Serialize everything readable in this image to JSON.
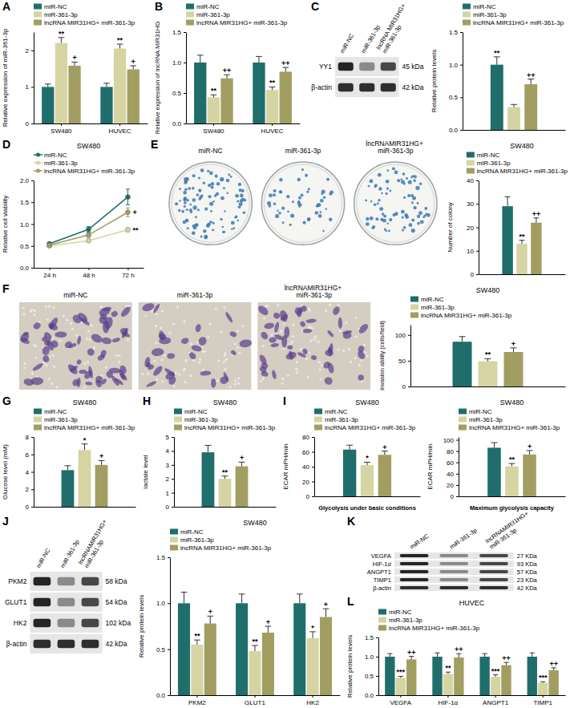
{
  "chart_data": [
    {
      "panel": "A",
      "type": "bar",
      "y_label": "Relative expression of miR-361-3p",
      "categories": [
        "SW480",
        "HUVEC"
      ],
      "series": [
        {
          "name": "miR-NC",
          "color": "#1f6e6b",
          "values": [
            1.0,
            1.0
          ],
          "errors": [
            0.08,
            0.1
          ]
        },
        {
          "name": "miR-361-3p",
          "color": "#d6d4a3",
          "values": [
            2.2,
            2.05
          ],
          "errors": [
            0.15,
            0.12
          ],
          "annotations": [
            "**",
            "**"
          ]
        },
        {
          "name": "lncRNA MIR31HG+ miR-361-3p",
          "color": "#a29e62",
          "values": [
            1.58,
            1.48
          ],
          "errors": [
            0.1,
            0.1
          ],
          "annotations": [
            "+",
            "+"
          ]
        }
      ],
      "ylim": [
        0,
        2.5
      ],
      "yticks": [
        0,
        1,
        2
      ]
    },
    {
      "panel": "B",
      "type": "bar",
      "y_label": "Relative expression of lncRNA MIR31HG",
      "categories": [
        "SW480",
        "HUVEC"
      ],
      "series": [
        {
          "name": "miR-NC",
          "color": "#1f6e6b",
          "values": [
            1.0,
            1.0
          ],
          "errors": [
            0.12,
            0.1
          ]
        },
        {
          "name": "miR-361-3p",
          "color": "#d6d4a3",
          "values": [
            0.43,
            0.55
          ],
          "errors": [
            0.04,
            0.05
          ],
          "annotations": [
            "**",
            "**"
          ]
        },
        {
          "name": "lncRNA MIR31HG+ miR-361-3p",
          "color": "#a29e62",
          "values": [
            0.74,
            0.85
          ],
          "errors": [
            0.06,
            0.07
          ],
          "annotations": [
            "++",
            "++"
          ]
        }
      ],
      "ylim": [
        0,
        1.5
      ],
      "yticks": [
        {
          "value": 0,
          "label": "0.0"
        },
        0.5,
        {
          "value": 1,
          "label": "1.0"
        },
        1.5
      ]
    },
    {
      "panel": "C",
      "type": "blot",
      "lanes": [
        "miR-NC",
        "miR-361-3p",
        "lncRNA MIR31HG+ miR-361-3p"
      ],
      "bands": [
        {
          "name": "YY1",
          "size": "45 kDa"
        },
        {
          "name": "β-actin",
          "size": "42 kDa"
        }
      ]
    },
    {
      "type": "bar",
      "y_label": "Relative protein levels",
      "categories": [
        null
      ],
      "series": [
        {
          "name": "miR-NC",
          "color": "#1f6e6b",
          "values": [
            1.0
          ],
          "errors": [
            0.12
          ],
          "annotations": [
            "**"
          ]
        },
        {
          "name": "miR-361-3p",
          "color": "#d6d4a3",
          "values": [
            0.35
          ],
          "errors": [
            0.04
          ]
        },
        {
          "name": "lncRNA MIR31HG+ miR-361-3p",
          "color": "#a29e62",
          "values": [
            0.7
          ],
          "errors": [
            0.08
          ],
          "annotations": [
            "++"
          ]
        }
      ],
      "ylim": [
        0,
        1.5
      ],
      "yticks": [
        {
          "value": 0,
          "label": "0.0"
        },
        0.5,
        {
          "value": 1,
          "label": "1.0"
        },
        1.5
      ]
    },
    {
      "panel": "D",
      "type": "line",
      "title": "SW480",
      "y_label": "Relative cell viability",
      "marker": "circle",
      "categories": [
        "24 h",
        "48 h",
        "72 h"
      ],
      "series": [
        {
          "name": "miR-NC",
          "color": "#1f6e6b",
          "values": [
            0.55,
            0.88,
            1.62
          ],
          "errors": [
            0.03,
            0.06,
            0.18
          ]
        },
        {
          "name": "miR-361-3p",
          "color": "#d6d4a3",
          "values": [
            0.5,
            0.62,
            0.87
          ],
          "errors": [
            0.03,
            0.04,
            0.05
          ],
          "annotations": [
            null,
            null,
            "**"
          ]
        },
        {
          "name": "lncRNA MIR31HG+ miR-361-3p",
          "color": "#a29e62",
          "values": [
            0.52,
            0.75,
            1.27
          ],
          "errors": [
            0.03,
            0.05,
            0.1
          ],
          "annotations": [
            null,
            null,
            "+"
          ]
        }
      ],
      "ylim": [
        0,
        2
      ],
      "yticks": [
        {
          "value": 0,
          "label": "0.0"
        },
        0.5,
        {
          "value": 1,
          "label": "1.0"
        },
        1.5,
        {
          "value": 2,
          "label": "2.0"
        }
      ]
    },
    {
      "panel": "E",
      "type": "plates",
      "labels": [
        "miR-NC",
        "miR-361-3p",
        "lncRNAMIR31HG+ miR-361-3p"
      ]
    },
    {
      "type": "bar",
      "title": "SW480",
      "y_label": "Number of colony",
      "categories": [
        null
      ],
      "series": [
        {
          "name": "miR-NC",
          "color": "#1f6e6b",
          "values": [
            29
          ],
          "errors": [
            4
          ]
        },
        {
          "name": "miR-361-3p",
          "color": "#d6d4a3",
          "values": [
            13
          ],
          "errors": [
            1.5
          ],
          "annotations": [
            "**"
          ]
        },
        {
          "name": "lncRNA MIR31HG+ miR-361-3p",
          "color": "#a29e62",
          "values": [
            22
          ],
          "errors": [
            2
          ],
          "annotations": [
            "++"
          ]
        }
      ],
      "ylim": [
        0,
        40
      ],
      "yticks": [
        0,
        10,
        20,
        30,
        40
      ]
    },
    {
      "panel": "F",
      "type": "micrographs",
      "labels": [
        "miR-NC",
        "miR-361-3p",
        "lncRNAMIR31HG+ miR-361-3p"
      ]
    },
    {
      "type": "bar",
      "title": "SW480",
      "y_label": "Invasion ability (cells/field)",
      "categories": [
        null
      ],
      "series": [
        {
          "name": "miR-NC",
          "color": "#1f6e6b",
          "values": [
            87
          ],
          "errors": [
            10
          ]
        },
        {
          "name": "miR-361-3p",
          "color": "#d6d4a3",
          "values": [
            49
          ],
          "errors": [
            5
          ],
          "annotations": [
            "**"
          ]
        },
        {
          "name": "lncRNA MIR31HG+ miR-361-3p",
          "color": "#a29e62",
          "values": [
            67
          ],
          "errors": [
            8
          ],
          "annotations": [
            "+"
          ]
        }
      ],
      "ylim": [
        0,
        120
      ],
      "yticks": [
        0,
        50,
        100
      ]
    },
    {
      "panel": "G",
      "type": "bar",
      "title": "SW480",
      "y_label": "Glucose level (mM)",
      "categories": [
        null
      ],
      "series": [
        {
          "name": "miR-NC",
          "color": "#1f6e6b",
          "values": [
            4.2
          ],
          "errors": [
            0.5
          ]
        },
        {
          "name": "miR-361-3p",
          "color": "#d6d4a3",
          "values": [
            6.5
          ],
          "errors": [
            0.7
          ],
          "annotations": [
            "*"
          ]
        },
        {
          "name": "lncRNA MIR31HG+ miR-361-3p",
          "color": "#a29e62",
          "values": [
            4.8
          ],
          "errors": [
            0.5
          ],
          "annotations": [
            "+"
          ]
        }
      ],
      "ylim": [
        0,
        8
      ],
      "yticks": [
        0,
        2,
        4,
        6,
        8
      ]
    },
    {
      "panel": "H",
      "type": "bar",
      "title": "SW480",
      "y_label": "lactate level",
      "categories": [
        null
      ],
      "series": [
        {
          "name": "miR-NC",
          "color": "#1f6e6b",
          "values": [
            3.9
          ],
          "errors": [
            0.5
          ]
        },
        {
          "name": "miR-361-3p",
          "color": "#d6d4a3",
          "values": [
            2.0
          ],
          "errors": [
            0.2
          ],
          "annotations": [
            "**"
          ]
        },
        {
          "name": "lncRNA MIR31HG+ miR-361-3p",
          "color": "#a29e62",
          "values": [
            2.9
          ],
          "errors": [
            0.3
          ],
          "annotations": [
            "+"
          ]
        }
      ],
      "ylim": [
        0,
        5
      ],
      "yticks": [
        0,
        1,
        2,
        3,
        4,
        5
      ]
    },
    {
      "panel": "I",
      "type": "bar",
      "title": "SW480",
      "y_label": "ECAR mPH/min",
      "x_label": "Glycolysis under basic conditions",
      "categories": [
        null
      ],
      "series": [
        {
          "name": "miR-NC",
          "color": "#1f6e6b",
          "values": [
            63
          ],
          "errors": [
            6
          ]
        },
        {
          "name": "miR-361-3p",
          "color": "#d6d4a3",
          "values": [
            42
          ],
          "errors": [
            4
          ],
          "annotations": [
            "*"
          ]
        },
        {
          "name": "lncRNA MIR31HG+ miR-361-3p",
          "color": "#a29e62",
          "values": [
            56
          ],
          "errors": [
            5
          ],
          "annotations": [
            "+"
          ]
        }
      ],
      "ylim": [
        0,
        80
      ],
      "yticks": [
        0,
        20,
        40,
        60,
        80
      ]
    },
    {
      "type": "bar",
      "title": "SW480",
      "y_label": "ECAR mPH/min",
      "x_label": "Maximum glycolysis capacity",
      "categories": [
        null
      ],
      "series": [
        {
          "name": "miR-NC",
          "color": "#1f6e6b",
          "values": [
            86
          ],
          "errors": [
            9
          ]
        },
        {
          "name": "miR-361-3p",
          "color": "#d6d4a3",
          "values": [
            53
          ],
          "errors": [
            5
          ],
          "annotations": [
            "**"
          ]
        },
        {
          "name": "lncRNA MIR31HG+ miR-361-3p",
          "color": "#a29e62",
          "values": [
            74
          ],
          "errors": [
            7
          ],
          "annotations": [
            "+"
          ]
        }
      ],
      "ylim": [
        0,
        105
      ],
      "yticks": [
        0,
        20,
        40,
        60,
        80,
        100
      ]
    },
    {
      "panel": "J",
      "type": "blot",
      "lanes": [
        "miR-NC",
        "miR-361-3p",
        "lncRNAMIR31HG+ miR-361-3p"
      ],
      "bands": [
        {
          "name": "PKM2",
          "size": "58 kDa"
        },
        {
          "name": "GLUT1",
          "size": "54 kDa"
        },
        {
          "name": "HK2",
          "size": "102 kDa"
        },
        {
          "name": "β-actin",
          "size": "42 kDa"
        }
      ]
    },
    {
      "type": "bar",
      "title": "SW480",
      "y_label": "Relative protein levels",
      "categories": [
        "PKM2",
        "GLUT1",
        "HK2"
      ],
      "series": [
        {
          "name": "miR-NC",
          "color": "#1f6e6b",
          "values": [
            1.0,
            1.0,
            1.0
          ],
          "errors": [
            0.12,
            0.1,
            0.1
          ]
        },
        {
          "name": "miR-361-3p",
          "color": "#d6d4a3",
          "values": [
            0.55,
            0.48,
            0.62
          ],
          "errors": [
            0.05,
            0.06,
            0.07
          ],
          "annotations": [
            "**",
            "**",
            "*"
          ]
        },
        {
          "name": "lncRNA MIR31HG+ miR-361-3p",
          "color": "#a29e62",
          "values": [
            0.78,
            0.68,
            0.85
          ],
          "errors": [
            0.08,
            0.07,
            0.09
          ],
          "annotations": [
            "+",
            "+",
            "+"
          ]
        }
      ],
      "ylim": [
        0,
        1.5
      ],
      "yticks": [
        {
          "value": 0,
          "label": "0.0"
        },
        0.5,
        {
          "value": 1,
          "label": "1.0"
        },
        1.5
      ]
    },
    {
      "panel": "K",
      "type": "blot",
      "lanes": [
        "miR-NC",
        "miR-361-3p",
        "lncRNAMIR31HG+ miR-361-3p"
      ],
      "bands": [
        {
          "name": "VEGFA",
          "size": "27 KDa"
        },
        {
          "name": "HIF-1α",
          "size": "93 KDa"
        },
        {
          "name": "ANGPT1",
          "size": "57 KDa"
        },
        {
          "name": "TIMP1",
          "size": "23 KDa"
        },
        {
          "name": "β-actin",
          "size": "42 KDa"
        }
      ]
    },
    {
      "panel": "L",
      "type": "bar",
      "title": "HUVEC",
      "y_label": "Relative protein levels",
      "categories": [
        "VEGFA",
        "HIF-1α",
        "ANGPT1",
        "TIMP1"
      ],
      "series": [
        {
          "name": "miR-NC",
          "color": "#1f6e6b",
          "values": [
            1.0,
            1.0,
            1.0,
            1.0
          ],
          "errors": [
            0.08,
            0.1,
            0.08,
            0.1
          ]
        },
        {
          "name": "miR-361-3p",
          "color": "#d6d4a3",
          "values": [
            0.45,
            0.55,
            0.48,
            0.32
          ],
          "errors": [
            0.04,
            0.05,
            0.05,
            0.03
          ],
          "annotations": [
            "***",
            "**",
            "***",
            "***"
          ]
        },
        {
          "name": "lncRNA MIR31HG+ miR-361-3p",
          "color": "#a29e62",
          "values": [
            0.93,
            0.98,
            0.78,
            0.65
          ],
          "errors": [
            0.08,
            0.1,
            0.07,
            0.06
          ],
          "annotations": [
            "++",
            "++",
            "++",
            "++"
          ]
        }
      ],
      "ylim": [
        0,
        1.5
      ],
      "yticks": [
        {
          "value": 0,
          "label": "0.0"
        },
        0.5,
        {
          "value": 1,
          "label": "1.0"
        },
        1.5
      ]
    }
  ]
}
